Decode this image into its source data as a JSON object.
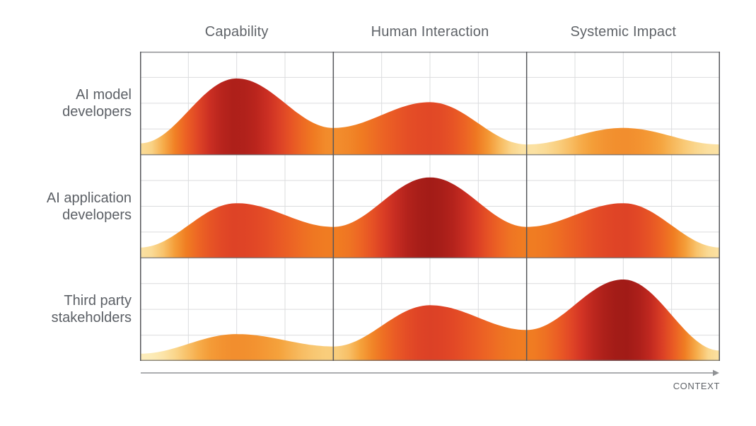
{
  "chart_data": {
    "type": "area",
    "columns": [
      "Capability",
      "Human Interaction",
      "Systemic Impact"
    ],
    "rows": [
      {
        "label": "AI model developers",
        "profile": {
          "edge_left": 0.11,
          "peaks": [
            0.74,
            0.51,
            0.26
          ],
          "valleys": [
            0.26,
            0.1
          ],
          "edge_right": 0.1
        }
      },
      {
        "label": "AI application developers",
        "profile": {
          "edge_left": 0.1,
          "peaks": [
            0.53,
            0.78,
            0.53
          ],
          "valleys": [
            0.3,
            0.3
          ],
          "edge_right": 0.1
        }
      },
      {
        "label": "Third party stakeholders",
        "profile": {
          "edge_left": 0.07,
          "peaks": [
            0.26,
            0.54,
            0.79
          ],
          "valleys": [
            0.14,
            0.3
          ],
          "edge_right": 0.1
        }
      }
    ],
    "x_axis_label": "CONTEXT",
    "legend": "none",
    "grid": {
      "subcolumns_per_cell": 4,
      "subrows_per_band": 4
    },
    "palette": [
      [
        0.05,
        "#FDF2CA"
      ],
      [
        0.09,
        "#FCE7AE"
      ],
      [
        0.14,
        "#F9CE7D"
      ],
      [
        0.21,
        "#F5A33C"
      ],
      [
        0.3,
        "#F07D22"
      ],
      [
        0.4,
        "#EC6124"
      ],
      [
        0.5,
        "#E34A26"
      ],
      [
        0.6,
        "#D23325"
      ],
      [
        0.7,
        "#B8241D"
      ],
      [
        0.8,
        "#9E1A16"
      ]
    ],
    "colors": {
      "header_text": "#5F6368",
      "row_label_text": "#5C6066",
      "grid_minor": "#DBDCDE",
      "cell_border_vertical": "#56575B",
      "cell_border_horizontal": "#64656A",
      "arrow": "#909295",
      "background": "#FFFFFF"
    }
  }
}
